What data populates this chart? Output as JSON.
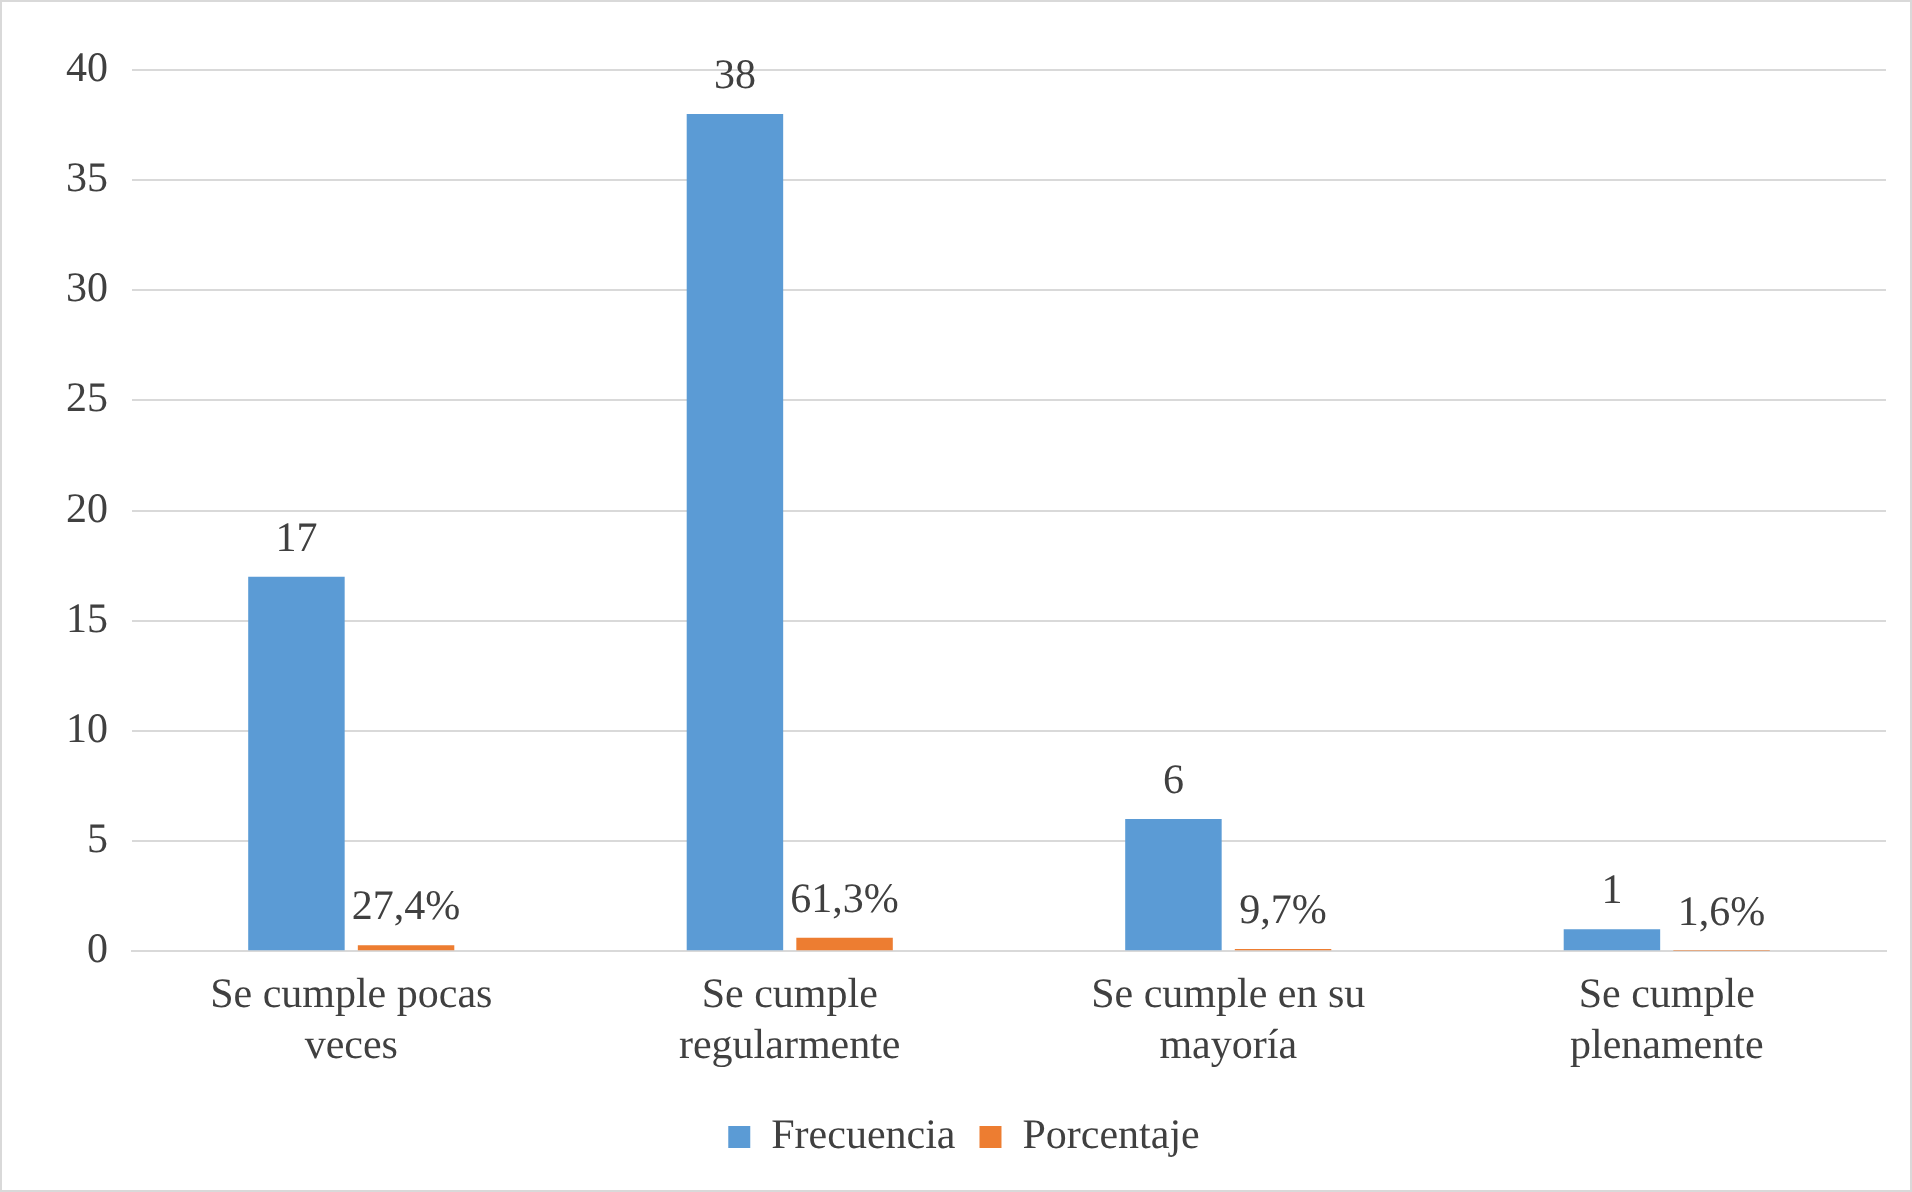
{
  "chart_data": {
    "type": "bar",
    "categories": [
      "Se cumple pocas veces",
      "Se cumple regularmente",
      "Se cumple en su mayoría",
      "Se cumple plenamente"
    ],
    "series": [
      {
        "name": "Frecuencia",
        "color": "#5b9bd5",
        "values": [
          17,
          38,
          6,
          1
        ],
        "value_labels": [
          "17",
          "38",
          "6",
          "1"
        ]
      },
      {
        "name": "Porcentaje",
        "color": "#ed7d31",
        "values": [
          0.274,
          0.613,
          0.097,
          0.016
        ],
        "value_labels": [
          "27,4%",
          "61,3%",
          "9,7%",
          "1,6%"
        ]
      }
    ],
    "ylim": [
      0,
      40
    ],
    "yticks": [
      0,
      5,
      10,
      15,
      20,
      25,
      30,
      35,
      40
    ],
    "grid": "y",
    "legend": "bottom"
  }
}
